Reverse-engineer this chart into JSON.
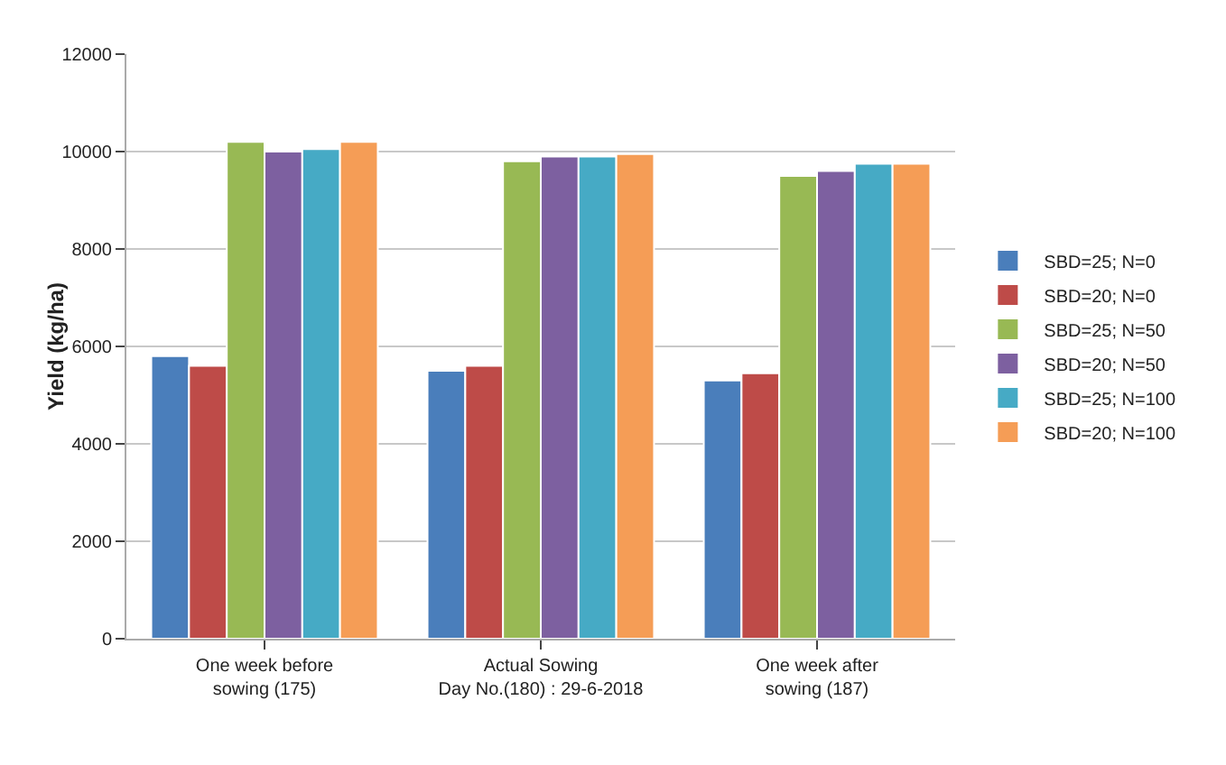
{
  "chart_data": {
    "type": "bar",
    "ylabel": "Yield (kg/ha)",
    "categories": [
      "One week before\nsowing (175)",
      "Actual Sowing\nDay No.(180) : 29-6-2018",
      "One week after\nsowing (187)"
    ],
    "series": [
      {
        "name": "SBD=25; N=0",
        "color": "#4a7ebb",
        "values": [
          5800,
          5500,
          5300
        ]
      },
      {
        "name": "SBD=20; N=0",
        "color": "#be4b48",
        "values": [
          5600,
          5600,
          5450
        ]
      },
      {
        "name": "SBD=25; N=50",
        "color": "#98b954",
        "values": [
          10200,
          9800,
          9500
        ]
      },
      {
        "name": "SBD=20; N=50",
        "color": "#7d60a0",
        "values": [
          10000,
          9900,
          9600
        ]
      },
      {
        "name": "SBD=25; N=100",
        "color": "#46aac5",
        "values": [
          10050,
          9900,
          9750
        ]
      },
      {
        "name": "SBD=20; N=100",
        "color": "#f59d56",
        "values": [
          10200,
          9950,
          9750
        ]
      }
    ],
    "ylim": [
      0,
      12000
    ],
    "yticks": [
      0,
      2000,
      4000,
      6000,
      8000,
      10000,
      12000
    ],
    "grid": "y",
    "legend": "right"
  }
}
